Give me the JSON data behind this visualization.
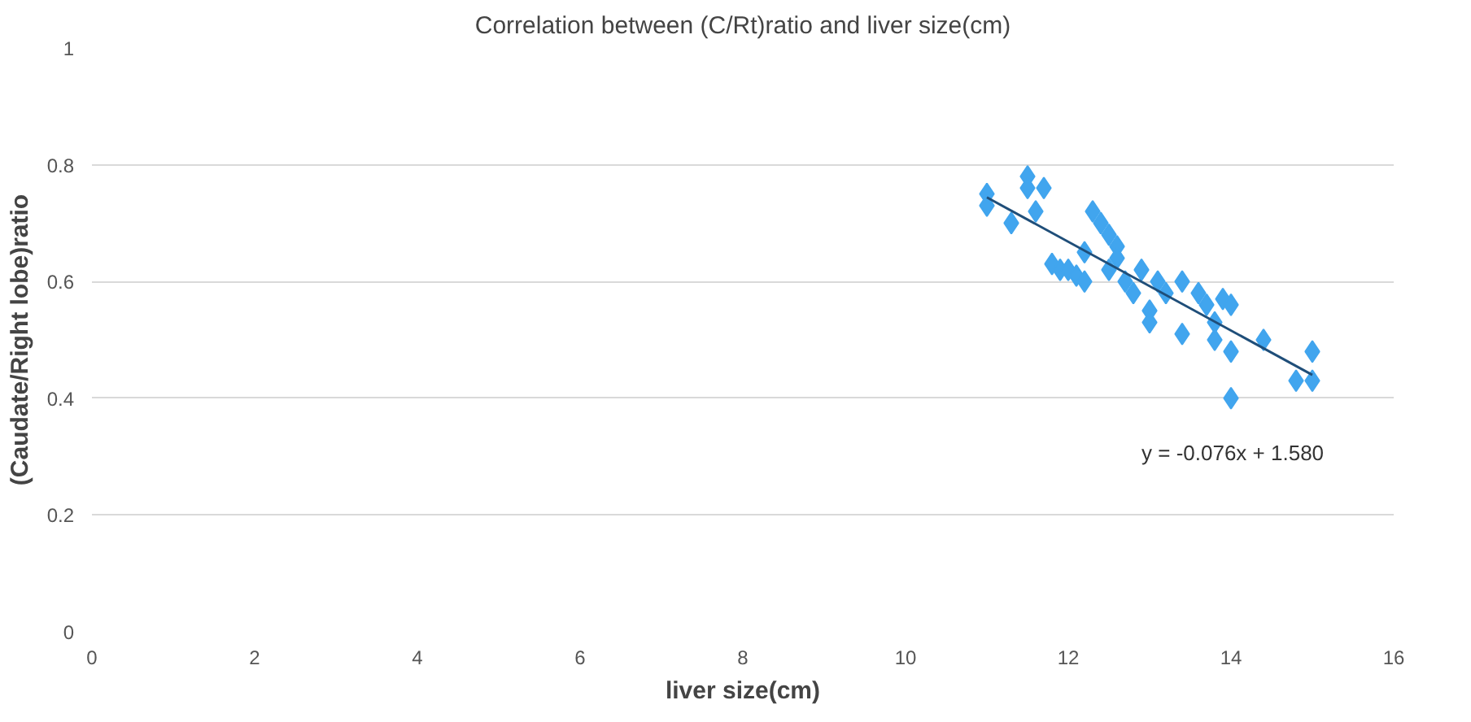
{
  "chart_data": {
    "type": "scatter",
    "title": "Correlation between (C/Rt)ratio and liver size(cm)",
    "xlabel": "liver size(cm)",
    "ylabel": "(Caudate/Right lobe)ratio",
    "xlim": [
      0,
      16
    ],
    "xticks": [
      0,
      2,
      4,
      6,
      8,
      10,
      12,
      14,
      16
    ],
    "ylim": [
      0,
      1
    ],
    "yticks": [
      0,
      0.2,
      0.4,
      0.6,
      0.8,
      1
    ],
    "grid": "y",
    "annotations": [
      "y = -0.076x + 1.580"
    ],
    "series": [
      {
        "marker": "diamond",
        "color": "#41a5ee",
        "x": [
          11,
          11,
          11.5,
          11.5,
          11.7,
          11.6,
          11.3,
          11.8,
          11.9,
          12,
          12.1,
          12.2,
          12.3,
          12.4,
          12.5,
          12.6,
          12.5,
          12.7,
          12.8,
          12.9,
          13,
          13,
          13.1,
          13.2,
          13.4,
          13.4,
          13.6,
          13.7,
          13.8,
          13.9,
          13.8,
          14,
          14,
          14,
          14.4,
          14.8,
          15,
          15,
          12.2,
          12.6
        ],
        "values": [
          0.75,
          0.73,
          0.78,
          0.76,
          0.76,
          0.72,
          0.7,
          0.63,
          0.62,
          0.62,
          0.61,
          0.6,
          0.72,
          0.7,
          0.68,
          0.66,
          0.62,
          0.6,
          0.58,
          0.62,
          0.55,
          0.53,
          0.6,
          0.58,
          0.6,
          0.51,
          0.58,
          0.56,
          0.53,
          0.57,
          0.5,
          0.56,
          0.48,
          0.4,
          0.5,
          0.43,
          0.48,
          0.43,
          0.65,
          0.64
        ]
      },
      {
        "type": "line",
        "color": "#1f4e79",
        "x": [
          11,
          15
        ],
        "values": [
          0.744,
          0.44
        ]
      }
    ]
  }
}
